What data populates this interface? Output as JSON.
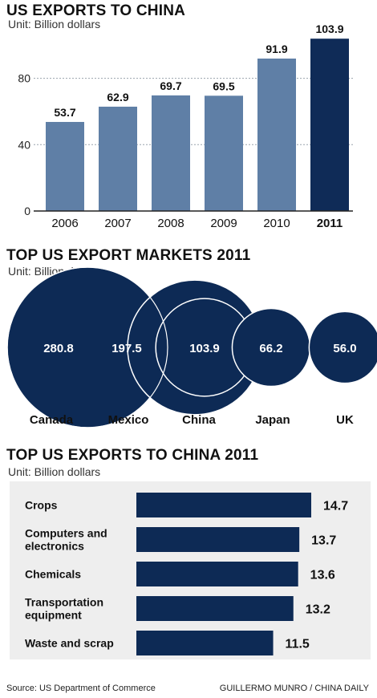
{
  "source": "Source: US Department of Commerce",
  "credit": "GUILLERMO MUNRO / CHINA DAILY",
  "colors": {
    "bar": "#5f7fa6",
    "highlight": "#0f2b57",
    "dark": "#0d2a55",
    "grid": "#9aa3ad"
  },
  "chart_data": [
    {
      "type": "bar",
      "title": "US EXPORTS TO CHINA",
      "unit": "Unit: Billion dollars",
      "categories": [
        "2006",
        "2007",
        "2008",
        "2009",
        "2010",
        "2011"
      ],
      "values": [
        53.7,
        62.9,
        69.7,
        69.5,
        91.9,
        103.9
      ],
      "value_labels": [
        "53.7",
        "62.9",
        "69.7",
        "69.5",
        "91.9",
        "103.9"
      ],
      "highlight": "2011",
      "yticks": [
        "0",
        "40",
        "80"
      ],
      "ylim": [
        0,
        104
      ],
      "grid": true
    },
    {
      "type": "bubble",
      "title": "TOP US EXPORT MARKETS 2011",
      "unit": "Unit: Billion dollars",
      "categories": [
        "Canada",
        "Mexico",
        "China",
        "Japan",
        "UK"
      ],
      "values": [
        280.8,
        197.5,
        103.9,
        66.2,
        56.0
      ],
      "value_labels": [
        "280.8",
        "197.5",
        "103.9",
        "66.2",
        "56.0"
      ]
    },
    {
      "type": "bar",
      "orientation": "horizontal",
      "title": "TOP US EXPORTS TO CHINA 2011",
      "unit": "Unit: Billion dollars",
      "categories": [
        [
          "Crops"
        ],
        [
          "Computers and",
          "electronics"
        ],
        [
          "Chemicals"
        ],
        [
          "Transportation",
          "equipment"
        ],
        [
          "Waste and scrap"
        ]
      ],
      "values": [
        14.7,
        13.7,
        13.6,
        13.2,
        11.5
      ],
      "value_labels": [
        "14.7",
        "13.7",
        "13.6",
        "13.2",
        "11.5"
      ]
    }
  ]
}
